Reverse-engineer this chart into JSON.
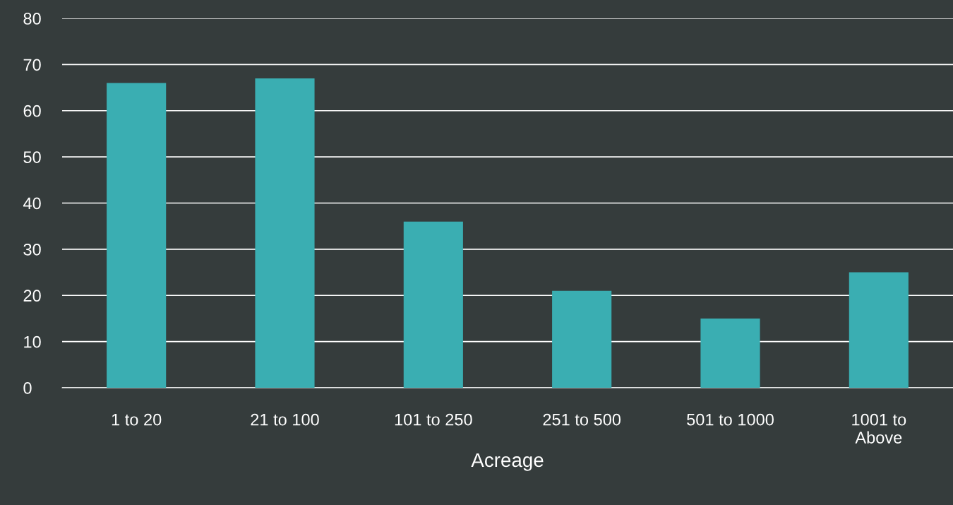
{
  "chart_data": {
    "type": "bar",
    "xlabel": "Acreage",
    "categories": [
      "1 to 20",
      "21 to 100",
      "101 to 250",
      "251 to 500",
      "501 to 1000",
      "1001 to\nAbove"
    ],
    "values": [
      66,
      67,
      36,
      21,
      15,
      25
    ],
    "color": "#3aaeb2",
    "ylim": [
      0,
      80
    ],
    "yticks": [
      0,
      10,
      20,
      30,
      40,
      50,
      60,
      70,
      80
    ],
    "grid": "y",
    "legend": false
  }
}
